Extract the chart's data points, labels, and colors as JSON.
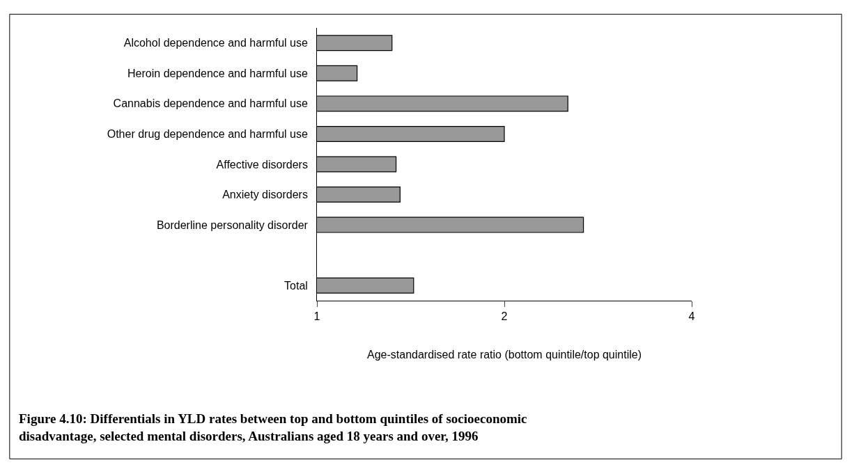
{
  "chart_data": {
    "type": "bar",
    "orientation": "horizontal",
    "log": "x",
    "title": "Figure 4.10: Differentials in YLD rates between top and bottom quintiles of socioeconomic disadvantage, selected mental disorders, Australians aged 18 years and over, 1996",
    "xlabel": "Age-standardised rate ratio (bottom quintile/top quintile)",
    "categories": [
      "Alcohol dependence and harmful use",
      "Heroin dependence and harmful use",
      "Cannabis dependence and harmful use",
      "Other drug dependence and harmful use",
      "Affective disorders",
      "Anxiety disorders",
      "Borderline personality disorder",
      null,
      "Total"
    ],
    "values": [
      1.32,
      1.16,
      2.53,
      2.0,
      1.34,
      1.36,
      2.68,
      null,
      1.43
    ],
    "color": "#999999",
    "xlim": [
      1,
      4
    ],
    "xticks": [
      1,
      2,
      4
    ],
    "legend": false
  }
}
